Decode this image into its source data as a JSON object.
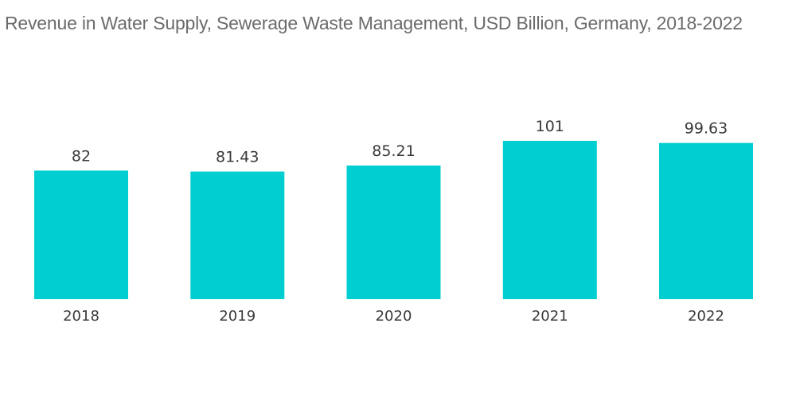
{
  "chart_data": {
    "type": "bar",
    "title": "Revenue in Water Supply, Sewerage  Waste Management, USD Billion, Germany, 2018-2022",
    "categories": [
      "2018",
      "2019",
      "2020",
      "2021",
      "2022"
    ],
    "values": [
      82,
      81.43,
      85.21,
      101,
      99.63
    ],
    "data_labels": [
      "82",
      "81.43",
      "85.21",
      "101",
      "99.63"
    ],
    "bar_color": "#00CED1",
    "xlabel": "",
    "ylabel": "",
    "grid": false,
    "legend": "none"
  }
}
